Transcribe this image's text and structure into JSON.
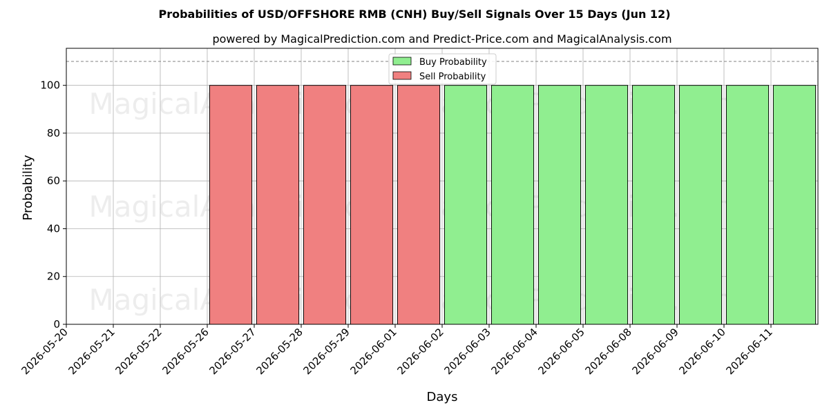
{
  "chart_data": {
    "type": "bar",
    "title": "Probabilities of USD/OFFSHORE RMB (CNH) Buy/Sell Signals Over 15 Days (Jun 12)",
    "subtitle": "powered by MagicalPrediction.com and Predict-Price.com and MagicalAnalysis.com",
    "xlabel": "Days",
    "ylabel": "Probability",
    "categories": [
      "2026-05-20",
      "2026-05-21",
      "2026-05-22",
      "2026-05-26",
      "2026-05-27",
      "2026-05-28",
      "2026-05-29",
      "2026-06-01",
      "2026-06-02",
      "2026-06-03",
      "2026-06-04",
      "2026-06-05",
      "2026-06-08",
      "2026-06-09",
      "2026-06-10",
      "2026-06-11"
    ],
    "series": [
      {
        "name": "Buy Probability",
        "color": "#90ee90",
        "values": [
          0,
          0,
          0,
          0,
          0,
          0,
          0,
          0,
          100,
          100,
          100,
          100,
          100,
          100,
          100,
          100
        ]
      },
      {
        "name": "Sell Probability",
        "color": "#f08080",
        "values": [
          0,
          0,
          0,
          100,
          100,
          100,
          100,
          100,
          0,
          0,
          0,
          0,
          0,
          0,
          0,
          0
        ]
      }
    ],
    "ylim": [
      0,
      115.5
    ],
    "yticks": [
      0,
      20,
      40,
      60,
      80,
      100
    ],
    "reference_line": 110,
    "grid": true,
    "legend_position": "top-center",
    "watermarks": [
      "MagicalAnalysis.com",
      "MagicalPrediction.com"
    ]
  }
}
